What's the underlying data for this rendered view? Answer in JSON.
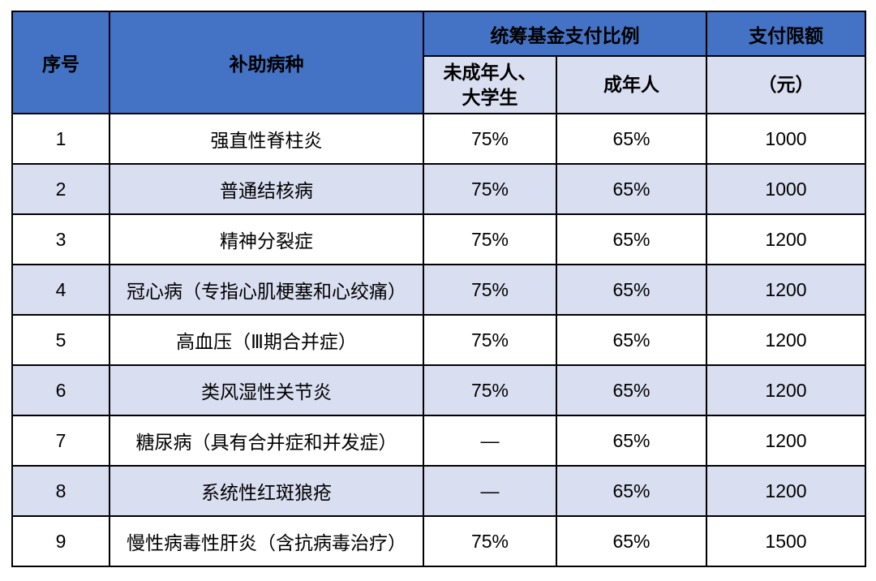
{
  "table": {
    "header": {
      "seq": "序号",
      "disease": "补助病种",
      "ratio_group": "统筹基金支付比例",
      "minor": "未成年人、\n大学生",
      "adult": "成年人",
      "limit": "支付限额",
      "limit_unit": "（元）"
    },
    "rows": [
      {
        "seq": "1",
        "disease": "强直性脊柱炎",
        "minor": "75%",
        "adult": "65%",
        "limit": "1000"
      },
      {
        "seq": "2",
        "disease": "普通结核病",
        "minor": "75%",
        "adult": "65%",
        "limit": "1000"
      },
      {
        "seq": "3",
        "disease": "精神分裂症",
        "minor": "75%",
        "adult": "65%",
        "limit": "1200"
      },
      {
        "seq": "4",
        "disease": "冠心病（专指心肌梗塞和心绞痛）",
        "minor": "75%",
        "adult": "65%",
        "limit": "1200"
      },
      {
        "seq": "5",
        "disease": "高血压（Ⅲ期合并症）",
        "minor": "75%",
        "adult": "65%",
        "limit": "1200"
      },
      {
        "seq": "6",
        "disease": "类风湿性关节炎",
        "minor": "75%",
        "adult": "65%",
        "limit": "1200"
      },
      {
        "seq": "7",
        "disease": "糖尿病（具有合并症和并发症）",
        "minor": "—",
        "adult": "65%",
        "limit": "1200"
      },
      {
        "seq": "8",
        "disease": "系统性红斑狼疮",
        "minor": "—",
        "adult": "65%",
        "limit": "1200"
      },
      {
        "seq": "9",
        "disease": "慢性病毒性肝炎（含抗病毒治疗）",
        "minor": "75%",
        "adult": "65%",
        "limit": "1500"
      }
    ]
  },
  "colors": {
    "header_bg": "#4472C4",
    "header_text": "#FFFFFF",
    "band_bg": "#D9DEF1",
    "border": "#000000"
  }
}
